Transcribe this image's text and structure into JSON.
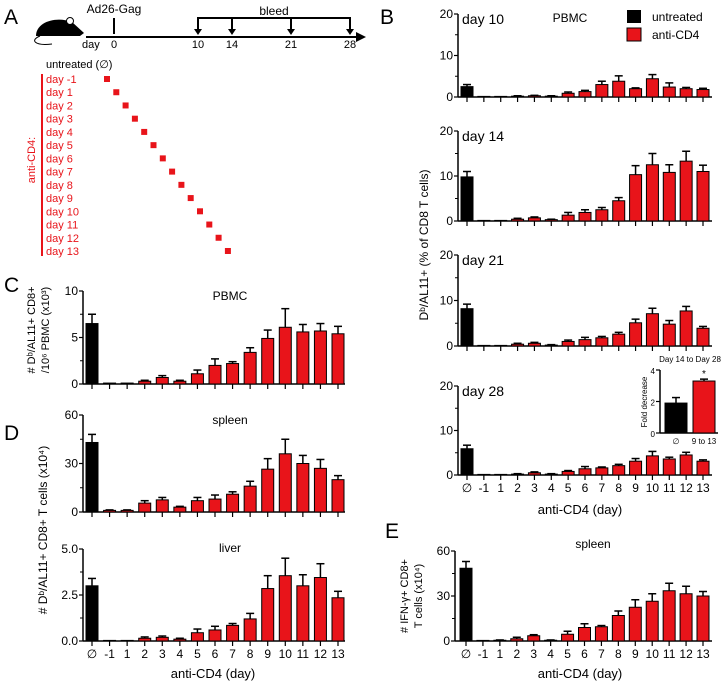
{
  "panel_letters": [
    "A",
    "B",
    "C",
    "D",
    "E"
  ],
  "panel_A": {
    "vaccine": "Ad26-Gag",
    "bleed": "bleed",
    "day_label": "day",
    "timeline_days": [
      "0",
      "10",
      "14",
      "21",
      "28"
    ],
    "untreated": "untreated (∅)",
    "group_label": "anti-CD4:",
    "treatment_days": [
      "day -1",
      "day 1",
      "day 2",
      "day 3",
      "day 4",
      "day 5",
      "day 6",
      "day 7",
      "day 8",
      "day 9",
      "day 10",
      "day 11",
      "day 12",
      "day 13"
    ]
  },
  "panel_B": {
    "title": "PBMC",
    "ylabel": "Dᵇ/AL11+ (% of CD8 T cells)",
    "legend": [
      {
        "label": "untreated",
        "color": "#000000"
      },
      {
        "label": "anti-CD4",
        "color": "#e8141a"
      }
    ]
  },
  "panel_C": {
    "ylabel_line1": "# Dᵇ/AL11+ CD8+",
    "ylabel_line2": "/10⁶ PBMC (x10³)"
  },
  "panel_D": {
    "ylabel": "# Dᵇ/AL11+ CD8+ T cells (x10⁴)"
  },
  "panel_E": {
    "ylabel_line1": "# IFN-γ+ CD8+",
    "ylabel_line2": "T cells (x10⁴)"
  },
  "colors": {
    "untreated": "#000000",
    "anti_cd4": "#e8141a"
  },
  "chart_data": [
    {
      "type": "bar",
      "panel": "B",
      "title": "day 10",
      "categories": [
        "∅",
        "-1",
        "1",
        "2",
        "3",
        "4",
        "5",
        "6",
        "7",
        "8",
        "9",
        "10",
        "11",
        "12",
        "13"
      ],
      "values": [
        2.5,
        0,
        0.1,
        0.2,
        0.3,
        0.2,
        0.9,
        1.3,
        3.0,
        3.8,
        2.0,
        4.4,
        2.4,
        2.0,
        1.8
      ],
      "errors": [
        0.5,
        0,
        0,
        0.1,
        0.1,
        0.1,
        0.3,
        0.3,
        0.8,
        1.3,
        0.2,
        1.0,
        1.0,
        0.3,
        0.3
      ],
      "ylim": [
        0,
        20
      ],
      "yticks": [
        "0",
        "10",
        "20"
      ],
      "xlabel": ""
    },
    {
      "type": "bar",
      "panel": "B",
      "title": "day 14",
      "categories": [
        "∅",
        "-1",
        "1",
        "2",
        "3",
        "4",
        "5",
        "6",
        "7",
        "8",
        "9",
        "10",
        "11",
        "12",
        "13"
      ],
      "values": [
        9.8,
        0,
        0.1,
        0.4,
        0.7,
        0.3,
        1.3,
        1.9,
        2.5,
        4.5,
        10.3,
        12.5,
        10.8,
        13.3,
        11.0
      ],
      "errors": [
        1.2,
        0,
        0,
        0.2,
        0.2,
        0.1,
        0.6,
        0.6,
        0.5,
        0.7,
        2.0,
        2.5,
        1.7,
        2.2,
        1.4
      ],
      "ylim": [
        0,
        20
      ],
      "yticks": [
        "0",
        "10",
        "20"
      ],
      "xlabel": ""
    },
    {
      "type": "bar",
      "panel": "B",
      "title": "day 21",
      "categories": [
        "∅",
        "-1",
        "1",
        "2",
        "3",
        "4",
        "5",
        "6",
        "7",
        "8",
        "9",
        "10",
        "11",
        "12",
        "13"
      ],
      "values": [
        8.2,
        0,
        0.1,
        0.4,
        0.6,
        0.2,
        1.0,
        1.4,
        1.8,
        2.6,
        5.1,
        7.1,
        4.8,
        7.7,
        3.9
      ],
      "errors": [
        1.0,
        0,
        0,
        0.2,
        0.2,
        0.1,
        0.3,
        0.5,
        0.3,
        0.4,
        0.8,
        1.2,
        0.8,
        1.0,
        0.4
      ],
      "ylim": [
        0,
        20
      ],
      "yticks": [
        "0",
        "10",
        "20"
      ],
      "xlabel": ""
    },
    {
      "type": "bar",
      "panel": "B",
      "title": "day 28",
      "categories": [
        "∅",
        "-1",
        "1",
        "2",
        "3",
        "4",
        "5",
        "6",
        "7",
        "8",
        "9",
        "10",
        "11",
        "12",
        "13"
      ],
      "values": [
        5.9,
        0,
        0.1,
        0.2,
        0.5,
        0.2,
        0.8,
        1.4,
        1.6,
        2.1,
        3.1,
        4.3,
        3.6,
        4.5,
        3.1
      ],
      "errors": [
        0.8,
        0,
        0,
        0.1,
        0.2,
        0.1,
        0.2,
        0.5,
        0.2,
        0.3,
        0.6,
        1.0,
        0.4,
        0.6,
        0.3
      ],
      "ylim": [
        0,
        20
      ],
      "yticks": [
        "0",
        "10",
        "20"
      ],
      "xlabel": "anti-CD4 (day)"
    },
    {
      "type": "bar",
      "panel": "C",
      "title": "PBMC",
      "categories": [
        "∅",
        "-1",
        "1",
        "2",
        "3",
        "4",
        "5",
        "6",
        "7",
        "8",
        "9",
        "10",
        "11",
        "12",
        "13"
      ],
      "values": [
        6.5,
        0.1,
        0.1,
        0.3,
        0.7,
        0.3,
        1.1,
        2.0,
        2.2,
        3.4,
        4.9,
        6.1,
        5.6,
        5.7,
        5.4
      ],
      "errors": [
        1.0,
        0,
        0,
        0.1,
        0.2,
        0.1,
        0.4,
        0.7,
        0.2,
        0.5,
        0.9,
        2.0,
        0.8,
        0.8,
        0.8
      ],
      "ylim": [
        0,
        10
      ],
      "yticks": [
        "0",
        "5",
        "10"
      ],
      "xlabel": ""
    },
    {
      "type": "bar",
      "panel": "D",
      "title": "spleen",
      "categories": [
        "∅",
        "-1",
        "1",
        "2",
        "3",
        "4",
        "5",
        "6",
        "7",
        "8",
        "9",
        "10",
        "11",
        "12",
        "13"
      ],
      "values": [
        43,
        1,
        1,
        5.5,
        7.5,
        3,
        7,
        8,
        11,
        16,
        26.5,
        36,
        30,
        27,
        20
      ],
      "errors": [
        5,
        0.3,
        0.3,
        1.5,
        1.5,
        0.5,
        2,
        2.5,
        1.5,
        3,
        6.5,
        9,
        5,
        5.5,
        2.5
      ],
      "ylim": [
        0,
        60
      ],
      "yticks": [
        "0",
        "30",
        "60"
      ],
      "xlabel": ""
    },
    {
      "type": "bar",
      "panel": "D",
      "title": "liver",
      "categories": [
        "∅",
        "-1",
        "1",
        "2",
        "3",
        "4",
        "5",
        "6",
        "7",
        "8",
        "9",
        "10",
        "11",
        "12",
        "13"
      ],
      "values": [
        3.0,
        0.02,
        0.02,
        0.15,
        0.2,
        0.1,
        0.45,
        0.6,
        0.85,
        1.2,
        2.85,
        3.55,
        3.0,
        3.45,
        2.35
      ],
      "errors": [
        0.4,
        0,
        0,
        0.07,
        0.07,
        0.05,
        0.2,
        0.2,
        0.1,
        0.3,
        0.7,
        0.95,
        0.6,
        0.75,
        0.35
      ],
      "ylim": [
        0,
        5
      ],
      "yticks": [
        "0.0",
        "2.5",
        "5.0"
      ],
      "xlabel": "anti-CD4 (day)"
    },
    {
      "type": "bar",
      "panel": "E",
      "title": "spleen",
      "categories": [
        "∅",
        "-1",
        "1",
        "2",
        "3",
        "4",
        "5",
        "6",
        "7",
        "8",
        "9",
        "10",
        "11",
        "12",
        "13"
      ],
      "values": [
        48.5,
        0,
        0.5,
        1.5,
        3.5,
        0.5,
        4.5,
        9,
        9.5,
        17,
        22.5,
        26.5,
        33.5,
        31.5,
        30
      ],
      "errors": [
        4.5,
        0,
        0.2,
        1,
        0.7,
        0.2,
        2,
        2.5,
        0.8,
        3,
        5,
        5,
        5,
        5,
        3
      ],
      "ylim": [
        0,
        60
      ],
      "yticks": [
        "0",
        "30",
        "60"
      ],
      "xlabel": "anti-CD4 (day)"
    },
    {
      "type": "bar",
      "panel": "B-inset",
      "title": "Day 14 to Day 28",
      "categories": [
        "∅",
        "9 to 13"
      ],
      "values": [
        1.9,
        3.3
      ],
      "errors": [
        0.35,
        0.12
      ],
      "ylim": [
        0,
        4
      ],
      "yticks": [
        "0",
        "2",
        "4"
      ],
      "ylabel": "Fold decrease",
      "annotation": "*"
    }
  ]
}
